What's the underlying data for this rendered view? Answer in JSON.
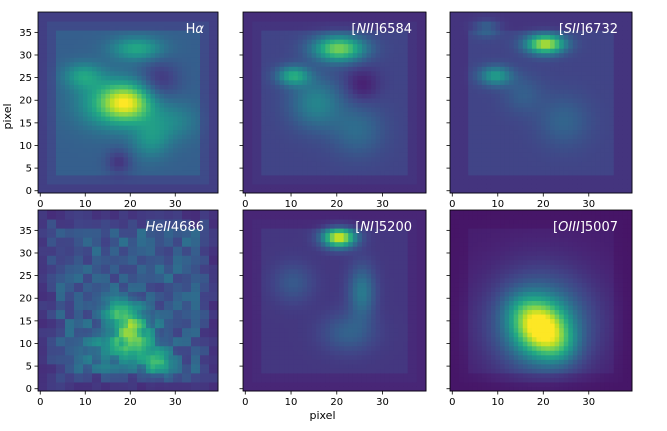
{
  "chart_data": [
    {
      "type": "heatmap",
      "colormap": "viridis",
      "xlim": [
        0,
        39
      ],
      "ylim": [
        0,
        39
      ],
      "x_ticks": [
        "0",
        "10",
        "20",
        "30"
      ],
      "y_ticks": [
        "0",
        "5",
        "10",
        "15",
        "20",
        "25",
        "30",
        "35"
      ],
      "title_prefix": "H",
      "title_emph": "α",
      "title_suffix": "",
      "ylabel": "pixel",
      "xlabel": "",
      "base": 0.3,
      "edge": 0.08,
      "blobs": [
        {
          "x": 20,
          "y": 20,
          "sx": 4,
          "sy": 3,
          "a": 0.55
        },
        {
          "x": 15,
          "y": 20,
          "sx": 5,
          "sy": 4,
          "a": 0.25
        },
        {
          "x": 10,
          "y": 26,
          "sx": 3,
          "sy": 2,
          "a": 0.25
        },
        {
          "x": 22,
          "y": 32,
          "sx": 4,
          "sy": 1.8,
          "a": 0.3
        },
        {
          "x": 25,
          "y": 12,
          "sx": 3,
          "sy": 3,
          "a": 0.2
        },
        {
          "x": 30,
          "y": 16,
          "sx": 4,
          "sy": 3,
          "a": 0.15
        },
        {
          "x": 27,
          "y": 25,
          "sx": 3,
          "sy": 3,
          "a": -0.15
        },
        {
          "x": 18,
          "y": 7,
          "sx": 2,
          "sy": 2,
          "a": -0.15
        }
      ]
    },
    {
      "type": "heatmap",
      "colormap": "viridis",
      "xlim": [
        0,
        39
      ],
      "ylim": [
        0,
        39
      ],
      "x_ticks": [
        "0",
        "10",
        "20",
        "30"
      ],
      "y_ticks": [],
      "title_prefix": "[",
      "title_emph": "NII",
      "title_suffix": "]6584",
      "ylabel": "",
      "xlabel": "",
      "base": 0.2,
      "edge": 0.06,
      "blobs": [
        {
          "x": 21,
          "y": 32,
          "sx": 4,
          "sy": 2,
          "a": 0.6
        },
        {
          "x": 11,
          "y": 26,
          "sx": 2.5,
          "sy": 1.5,
          "a": 0.4
        },
        {
          "x": 16,
          "y": 20,
          "sx": 4,
          "sy": 4,
          "a": 0.25
        },
        {
          "x": 25,
          "y": 14,
          "sx": 4,
          "sy": 4,
          "a": 0.15
        },
        {
          "x": 26,
          "y": 24,
          "sx": 2.5,
          "sy": 2.5,
          "a": -0.12
        }
      ]
    },
    {
      "type": "heatmap",
      "colormap": "viridis",
      "xlim": [
        0,
        39
      ],
      "ylim": [
        0,
        39
      ],
      "x_ticks": [
        "0",
        "10",
        "20",
        "30"
      ],
      "y_ticks": [],
      "title_prefix": "[",
      "title_emph": "SII",
      "title_suffix": "]6732",
      "ylabel": "",
      "xlabel": "",
      "base": 0.2,
      "edge": 0.08,
      "blobs": [
        {
          "x": 21,
          "y": 33,
          "sx": 3,
          "sy": 1.5,
          "a": 0.7
        },
        {
          "x": 10,
          "y": 26,
          "sx": 2.5,
          "sy": 1.5,
          "a": 0.35
        },
        {
          "x": 8,
          "y": 37,
          "sx": 2,
          "sy": 1.5,
          "a": 0.2
        },
        {
          "x": 25,
          "y": 16,
          "sx": 4,
          "sy": 4,
          "a": 0.12
        },
        {
          "x": 16,
          "y": 22,
          "sx": 3,
          "sy": 3,
          "a": 0.1
        }
      ]
    },
    {
      "type": "heatmap",
      "colormap": "viridis",
      "xlim": [
        0,
        39
      ],
      "ylim": [
        0,
        39
      ],
      "x_ticks": [
        "0",
        "10",
        "20",
        "30"
      ],
      "y_ticks": [
        "0",
        "5",
        "10",
        "15",
        "20",
        "25",
        "30",
        "35"
      ],
      "title_prefix": "",
      "title_emph": "HeII",
      "title_suffix": "4686",
      "ylabel": "",
      "xlabel": "",
      "base": 0.28,
      "edge": 0.06,
      "noise": 0.18,
      "blobs": [
        {
          "x": 20,
          "y": 13,
          "sx": 2.5,
          "sy": 3.5,
          "a": 0.45
        },
        {
          "x": 27,
          "y": 6,
          "sx": 2,
          "sy": 2,
          "a": 0.35
        },
        {
          "x": 18,
          "y": 18,
          "sx": 3,
          "sy": 2,
          "a": 0.25
        },
        {
          "x": 23,
          "y": 11,
          "sx": 3,
          "sy": 4,
          "a": 0.2
        },
        {
          "x": 14,
          "y": 9,
          "sx": 3,
          "sy": 3,
          "a": 0.15
        }
      ]
    },
    {
      "type": "heatmap",
      "colormap": "viridis",
      "xlim": [
        0,
        39
      ],
      "ylim": [
        0,
        39
      ],
      "x_ticks": [
        "0",
        "10",
        "20",
        "30"
      ],
      "y_ticks": [],
      "title_prefix": "[",
      "title_emph": "NI",
      "title_suffix": "]5200",
      "ylabel": "",
      "xlabel": "pixel",
      "base": 0.16,
      "edge": 0.05,
      "blobs": [
        {
          "x": 21,
          "y": 34,
          "sx": 2.5,
          "sy": 1.5,
          "a": 0.8
        },
        {
          "x": 26,
          "y": 22,
          "sx": 2,
          "sy": 4,
          "a": 0.25
        },
        {
          "x": 23,
          "y": 13,
          "sx": 4,
          "sy": 3,
          "a": 0.15
        },
        {
          "x": 11,
          "y": 24,
          "sx": 3,
          "sy": 3,
          "a": 0.12
        }
      ]
    },
    {
      "type": "heatmap",
      "colormap": "viridis",
      "xlim": [
        0,
        39
      ],
      "ylim": [
        0,
        39
      ],
      "x_ticks": [
        "0",
        "10",
        "20",
        "30"
      ],
      "y_ticks": [],
      "title_prefix": "[",
      "title_emph": "OIII",
      "title_suffix": "]5007",
      "ylabel": "",
      "xlabel": "",
      "base": 0.08,
      "edge": 0.03,
      "blobs": [
        {
          "x": 20,
          "y": 14,
          "sx": 4,
          "sy": 4,
          "a": 0.65
        },
        {
          "x": 20,
          "y": 15,
          "sx": 8,
          "sy": 8,
          "a": 0.35
        },
        {
          "x": 24,
          "y": 10,
          "sx": 3,
          "sy": 3,
          "a": 0.2
        },
        {
          "x": 16,
          "y": 18,
          "sx": 3,
          "sy": 3,
          "a": 0.15
        }
      ]
    }
  ]
}
